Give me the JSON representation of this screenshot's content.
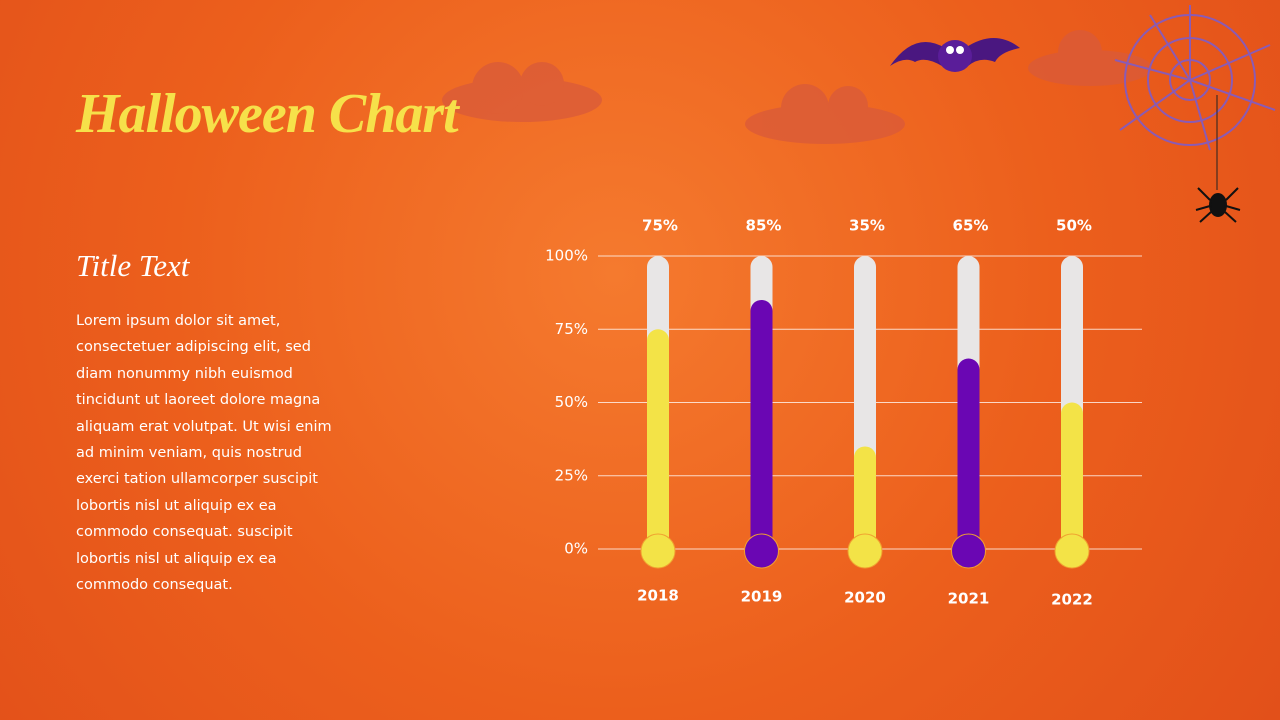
{
  "title": "Halloween Chart",
  "section": {
    "heading": "Title Text",
    "body_lines": [
      "Lorem ipsum dolor sit amet,",
      "consectetuer adipiscing elit, sed",
      "diam nonummy nibh euismod",
      "tincidunt ut laoreet dolore magna",
      "aliquam erat volutpat. Ut wisi enim",
      "ad minim veniam, quis nostrud",
      "exerci tation ullamcorper suscipit",
      "lobortis nisl ut aliquip ex ea",
      "commodo consequat. suscipit",
      "lobortis nisl ut aliquip ex ea",
      "commodo consequat."
    ]
  },
  "chart_data": {
    "type": "thermometer",
    "categories": [
      "2018",
      "2019",
      "2020",
      "2021",
      "2022"
    ],
    "values": [
      75,
      85,
      35,
      65,
      50
    ],
    "value_labels": [
      "75%",
      "85%",
      "35%",
      "65%",
      "50%"
    ],
    "colors": [
      "#f3e347",
      "#6a06b3",
      "#f3e347",
      "#6a06b3",
      "#f3e347"
    ],
    "ylim": [
      0,
      100
    ],
    "yticks": [
      {
        "value": 0,
        "label": "0%"
      },
      {
        "value": 25,
        "label": "25%"
      },
      {
        "value": 50,
        "label": "50%"
      },
      {
        "value": 75,
        "label": "75%"
      },
      {
        "value": 100,
        "label": "100%"
      }
    ],
    "grid": true
  }
}
